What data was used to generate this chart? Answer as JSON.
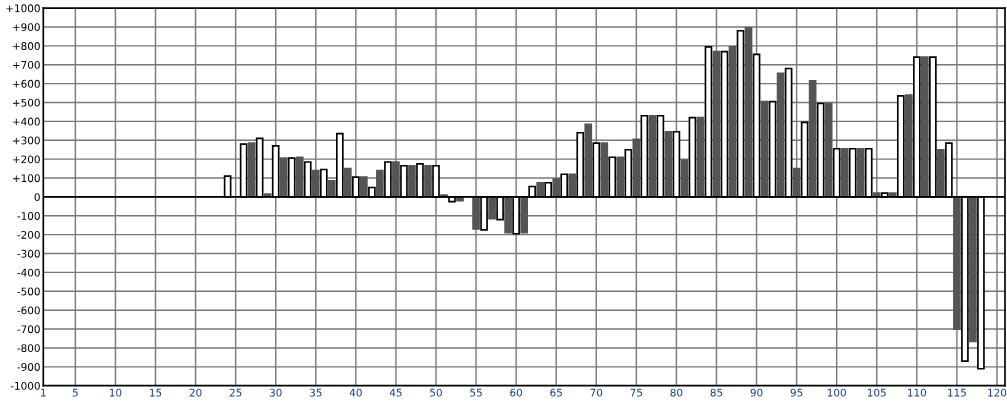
{
  "chart_data": {
    "type": "bar",
    "series": [
      {
        "color": "#ffffff",
        "x": [
          24,
          26,
          28,
          30,
          32,
          34,
          36,
          38,
          40,
          42,
          44,
          46,
          48,
          50,
          52,
          56,
          58,
          60,
          62,
          64,
          66,
          68,
          70,
          72,
          74,
          76,
          78,
          80,
          82,
          84,
          86,
          88,
          90,
          92,
          94,
          96,
          98,
          100,
          102,
          104,
          106,
          108,
          110,
          112,
          114,
          116,
          118
        ],
        "values": [
          110,
          280,
          310,
          270,
          205,
          185,
          145,
          335,
          105,
          50,
          185,
          165,
          175,
          165,
          -25,
          -175,
          -120,
          -195,
          55,
          75,
          120,
          340,
          285,
          210,
          250,
          430,
          430,
          345,
          420,
          795,
          770,
          880,
          755,
          505,
          680,
          395,
          495,
          255,
          255,
          255,
          20,
          535,
          740,
          740,
          285,
          -870,
          -910
        ]
      },
      {
        "color": "#555555",
        "x": [
          27,
          29,
          31,
          33,
          35,
          37,
          39,
          41,
          43,
          45,
          47,
          49,
          51,
          53,
          55,
          57,
          59,
          61,
          63,
          65,
          67,
          69,
          71,
          73,
          75,
          77,
          79,
          81,
          83,
          85,
          87,
          89,
          91,
          93,
          95,
          97,
          99,
          101,
          103,
          105,
          107,
          109,
          111,
          113,
          115,
          117
        ],
        "values": [
          285,
          15,
          205,
          210,
          140,
          85,
          150,
          105,
          140,
          185,
          165,
          165,
          10,
          -20,
          -170,
          -115,
          -190,
          -190,
          75,
          95,
          120,
          385,
          285,
          210,
          305,
          430,
          345,
          195,
          420,
          770,
          795,
          895,
          505,
          655,
          150,
          615,
          495,
          255,
          255,
          20,
          20,
          540,
          740,
          250,
          -700,
          -765
        ]
      }
    ],
    "xlim": [
      1,
      121
    ],
    "xticks": [
      1,
      5,
      10,
      15,
      20,
      25,
      30,
      35,
      40,
      45,
      50,
      55,
      60,
      65,
      70,
      75,
      80,
      85,
      90,
      95,
      100,
      105,
      110,
      115,
      120
    ],
    "ylim": [
      -1000,
      1000
    ],
    "yticks": [
      {
        "value": -1000,
        "label": "-1000"
      },
      {
        "value": -900,
        "label": "-900"
      },
      {
        "value": -800,
        "label": "-800"
      },
      {
        "value": -700,
        "label": "-700"
      },
      {
        "value": -600,
        "label": "-600"
      },
      {
        "value": -500,
        "label": "-500"
      },
      {
        "value": -400,
        "label": "-400"
      },
      {
        "value": -300,
        "label": "-300"
      },
      {
        "value": -200,
        "label": "-200"
      },
      {
        "value": -100,
        "label": "-100"
      },
      {
        "value": 0,
        "label": "0"
      },
      {
        "value": 100,
        "label": "+100"
      },
      {
        "value": 200,
        "label": "+200"
      },
      {
        "value": 300,
        "label": "+300"
      },
      {
        "value": 400,
        "label": "+400"
      },
      {
        "value": 500,
        "label": "+500"
      },
      {
        "value": 600,
        "label": "+600"
      },
      {
        "value": 700,
        "label": "+700"
      },
      {
        "value": 800,
        "label": "+800"
      },
      {
        "value": 900,
        "label": "+900"
      },
      {
        "value": 1000,
        "label": "+1000"
      }
    ],
    "ref_lines": [
      {
        "axis": "y",
        "value": 0,
        "color": "#000000"
      }
    ],
    "grid": true,
    "legend": false
  }
}
